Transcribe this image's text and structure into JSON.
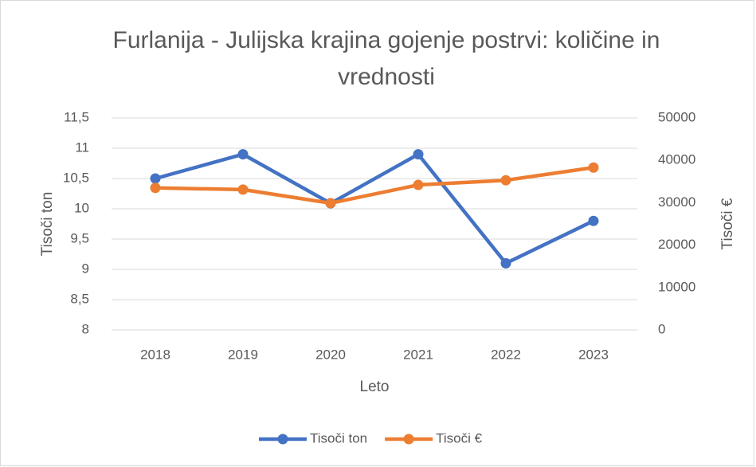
{
  "chart_data": {
    "type": "line",
    "title": "Furlanija - Julijska krajina gojenje postrvi: količine in vrednosti",
    "x_label": "Leto",
    "y_label": "Tisoči ton",
    "y2_label": "Tisoči €",
    "categories": [
      "2018",
      "2019",
      "2020",
      "2021",
      "2022",
      "2023"
    ],
    "series": [
      {
        "name": "Tisoči ton",
        "color": "#4472c4",
        "values": [
          10.5,
          10.9,
          10.09,
          10.9,
          9.1,
          9.8
        ]
      },
      {
        "name": "Tisoči €",
        "color": "#ed7d31",
        "axis": "y2",
        "values": [
          33500,
          33100,
          29900,
          34200,
          35300,
          38300
        ]
      }
    ],
    "ylim": [
      8,
      11.5
    ],
    "yticks": [
      8,
      {
        "value": 8.5,
        "label": "8,5"
      },
      9,
      {
        "value": 9.5,
        "label": "9,5"
      },
      10,
      {
        "value": 10.5,
        "label": "10,5"
      },
      11,
      {
        "value": 11.5,
        "label": "11,5"
      }
    ],
    "y2lim": [
      0,
      50000
    ],
    "y2ticks": [
      0,
      10000,
      20000,
      30000,
      40000,
      50000
    ],
    "grid": true,
    "legend": "bottom"
  }
}
